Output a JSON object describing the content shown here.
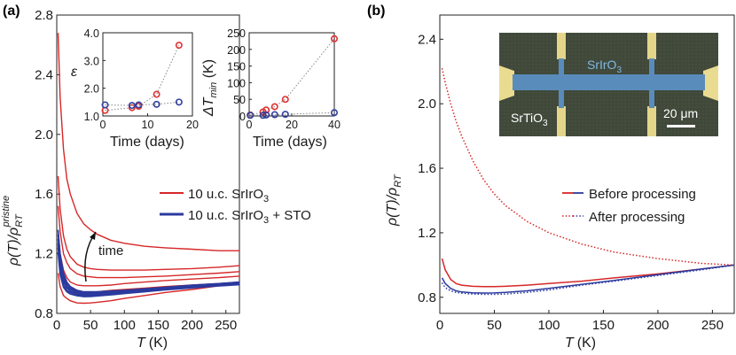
{
  "colors": {
    "red": "#d62728",
    "blue": "#2b3a9e",
    "inset_red": "#e03030",
    "inset_blue": "#3040a0",
    "micro_bg": "#3a4a3a",
    "micro_bar": "#5b8ab8",
    "micro_pad": "#e8d88a"
  },
  "panel_a": {
    "label": "(a)",
    "xlabel_var": "T",
    "xlabel_unit": "(K)",
    "ylabel_num": "ρ(T)/ρ",
    "ylabel_sup": "pristine",
    "ylabel_sub": "RT",
    "xlim": [
      0,
      270
    ],
    "ylim": [
      0.8,
      2.8
    ],
    "xticks": [
      "0",
      "50",
      "100",
      "150",
      "200",
      "250"
    ],
    "yticks": [
      "0.8",
      "1.2",
      "1.6",
      "2.0",
      "2.4",
      "2.8"
    ],
    "legend": [
      {
        "text": "10 u.c. SrIrO",
        "sub": "3",
        "extra": "",
        "color_key": "red"
      },
      {
        "text": "10 u.c. SrIrO",
        "sub": "3",
        "extra": " + STO",
        "color_key": "blue"
      }
    ],
    "annotation": "time",
    "chart_data": {
      "type": "line",
      "x": [
        2,
        5,
        10,
        15,
        20,
        30,
        40,
        50,
        60,
        80,
        100,
        130,
        160,
        200,
        240,
        270
      ],
      "series_red": [
        {
          "name": "red-1",
          "values": [
            2.68,
            2.25,
            1.9,
            1.7,
            1.6,
            1.47,
            1.4,
            1.36,
            1.33,
            1.29,
            1.27,
            1.25,
            1.24,
            1.23,
            1.22,
            1.22
          ]
        },
        {
          "name": "red-2",
          "values": [
            1.72,
            1.5,
            1.32,
            1.23,
            1.18,
            1.13,
            1.11,
            1.1,
            1.095,
            1.09,
            1.09,
            1.09,
            1.095,
            1.1,
            1.11,
            1.12
          ]
        },
        {
          "name": "red-3",
          "values": [
            1.52,
            1.35,
            1.2,
            1.14,
            1.1,
            1.065,
            1.05,
            1.045,
            1.04,
            1.04,
            1.04,
            1.045,
            1.05,
            1.06,
            1.07,
            1.08
          ]
        },
        {
          "name": "red-4",
          "values": [
            1.35,
            1.2,
            1.09,
            1.04,
            1.01,
            0.99,
            0.985,
            0.985,
            0.985,
            0.99,
            1.0,
            1.01,
            1.02,
            1.03,
            1.04,
            1.05
          ]
        },
        {
          "name": "red-5",
          "values": [
            1.25,
            1.12,
            1.02,
            0.98,
            0.96,
            0.945,
            0.94,
            0.94,
            0.945,
            0.955,
            0.96,
            0.97,
            0.98,
            0.99,
            1.0,
            1.01
          ]
        },
        {
          "name": "red-6",
          "values": [
            1.07,
            0.98,
            0.92,
            0.9,
            0.885,
            0.87,
            0.868,
            0.87,
            0.875,
            0.885,
            0.9,
            0.92,
            0.94,
            0.96,
            0.985,
            1.0
          ]
        }
      ],
      "series_blue": [
        {
          "name": "blue-1",
          "values": [
            1.36,
            1.2,
            1.07,
            1.01,
            0.98,
            0.955,
            0.945,
            0.945,
            0.945,
            0.95,
            0.955,
            0.965,
            0.975,
            0.99,
            1.0,
            1.01
          ]
        },
        {
          "name": "blue-2",
          "values": [
            1.33,
            1.17,
            1.05,
            0.995,
            0.97,
            0.948,
            0.94,
            0.94,
            0.942,
            0.947,
            0.952,
            0.962,
            0.972,
            0.985,
            0.997,
            1.005
          ]
        },
        {
          "name": "blue-3",
          "values": [
            1.3,
            1.14,
            1.03,
            0.98,
            0.96,
            0.94,
            0.932,
            0.932,
            0.935,
            0.94,
            0.947,
            0.957,
            0.967,
            0.98,
            0.993,
            1.0
          ]
        },
        {
          "name": "blue-4",
          "values": [
            1.27,
            1.11,
            1.01,
            0.97,
            0.95,
            0.932,
            0.925,
            0.925,
            0.928,
            0.934,
            0.942,
            0.952,
            0.963,
            0.977,
            0.99,
            0.997
          ]
        },
        {
          "name": "blue-5",
          "values": [
            1.24,
            1.08,
            0.99,
            0.955,
            0.94,
            0.925,
            0.918,
            0.918,
            0.922,
            0.928,
            0.937,
            0.948,
            0.96,
            0.974,
            0.987,
            0.995
          ]
        },
        {
          "name": "blue-6",
          "values": [
            1.21,
            1.06,
            0.975,
            0.945,
            0.93,
            0.918,
            0.912,
            0.913,
            0.917,
            0.924,
            0.933,
            0.945,
            0.957,
            0.971,
            0.984,
            0.992
          ]
        }
      ]
    },
    "inset_eps": {
      "ylabel": "ε",
      "xlabel": "Time (days)",
      "xlim": [
        0,
        20
      ],
      "ylim": [
        1.0,
        4.0
      ],
      "xticks": [
        "0",
        "10",
        "20"
      ],
      "yticks": [
        "1.0",
        "2.0",
        "3.0",
        "4.0"
      ],
      "chart_data": {
        "type": "scatter",
        "series": [
          {
            "name": "red",
            "x": [
              0.5,
              6.5,
              8,
              12,
              17
            ],
            "y": [
              1.2,
              1.3,
              1.35,
              1.78,
              3.55
            ]
          },
          {
            "name": "blue",
            "x": [
              0.5,
              6.5,
              8,
              12,
              17
            ],
            "y": [
              1.4,
              1.38,
              1.4,
              1.42,
              1.5
            ]
          }
        ]
      }
    },
    "inset_dt": {
      "ylabel_main": "ΔT",
      "ylabel_sub": "min",
      "ylabel_unit": " (K)",
      "xlabel": "Time (days)",
      "xlim": [
        0,
        40
      ],
      "ylim": [
        0,
        250
      ],
      "xticks": [
        "0",
        "20",
        "40"
      ],
      "yticks": [
        "0",
        "50",
        "100",
        "150",
        "200",
        "250"
      ],
      "chart_data": {
        "type": "scatter",
        "series": [
          {
            "name": "red",
            "x": [
              0.5,
              6.5,
              8,
              12,
              17,
              40
            ],
            "y": [
              3,
              12,
              18,
              28,
              50,
              232
            ]
          },
          {
            "name": "blue",
            "x": [
              0.5,
              6.5,
              8,
              12,
              17,
              40
            ],
            "y": [
              2,
              2,
              3,
              4,
              5,
              10
            ]
          }
        ]
      }
    }
  },
  "panel_b": {
    "label": "(b)",
    "xlabel_var": "T",
    "xlabel_unit": "(K)",
    "ylabel_num": "ρ(T)/ρ",
    "ylabel_sub": "RT",
    "xlim": [
      0,
      270
    ],
    "ylim": [
      0.7,
      2.55
    ],
    "xticks": [
      "0",
      "50",
      "100",
      "150",
      "200",
      "250"
    ],
    "yticks": [
      "0.8",
      "1.2",
      "1.6",
      "2.0",
      "2.4"
    ],
    "legend": [
      {
        "text": "Before processing",
        "style": "solid"
      },
      {
        "text": "After processing",
        "style": "dotted"
      }
    ],
    "micrograph": {
      "label_sio": "SrIrO",
      "label_sio_sub": "3",
      "label_sto": "SrTiO",
      "label_sto_sub": "3",
      "scale": "20 μm"
    },
    "chart_data": {
      "type": "line",
      "x": [
        2,
        5,
        10,
        15,
        20,
        30,
        40,
        50,
        60,
        80,
        100,
        130,
        160,
        200,
        240,
        270
      ],
      "series": [
        {
          "name": "before-red",
          "style": "solid",
          "values": [
            1.04,
            0.97,
            0.91,
            0.885,
            0.875,
            0.868,
            0.866,
            0.866,
            0.868,
            0.875,
            0.885,
            0.9,
            0.92,
            0.945,
            0.975,
            1.0
          ]
        },
        {
          "name": "before-blue",
          "style": "solid",
          "values": [
            0.92,
            0.885,
            0.855,
            0.84,
            0.833,
            0.828,
            0.826,
            0.827,
            0.83,
            0.84,
            0.855,
            0.88,
            0.905,
            0.94,
            0.975,
            1.0
          ]
        },
        {
          "name": "after-red",
          "style": "dotted",
          "values": [
            2.22,
            2.13,
            2.0,
            1.89,
            1.8,
            1.65,
            1.53,
            1.44,
            1.37,
            1.27,
            1.2,
            1.13,
            1.08,
            1.04,
            1.01,
            1.0
          ]
        },
        {
          "name": "after-blue",
          "style": "dotted",
          "values": [
            0.89,
            0.86,
            0.84,
            0.83,
            0.825,
            0.82,
            0.818,
            0.818,
            0.82,
            0.83,
            0.845,
            0.875,
            0.9,
            0.935,
            0.97,
            1.0
          ]
        }
      ]
    }
  }
}
